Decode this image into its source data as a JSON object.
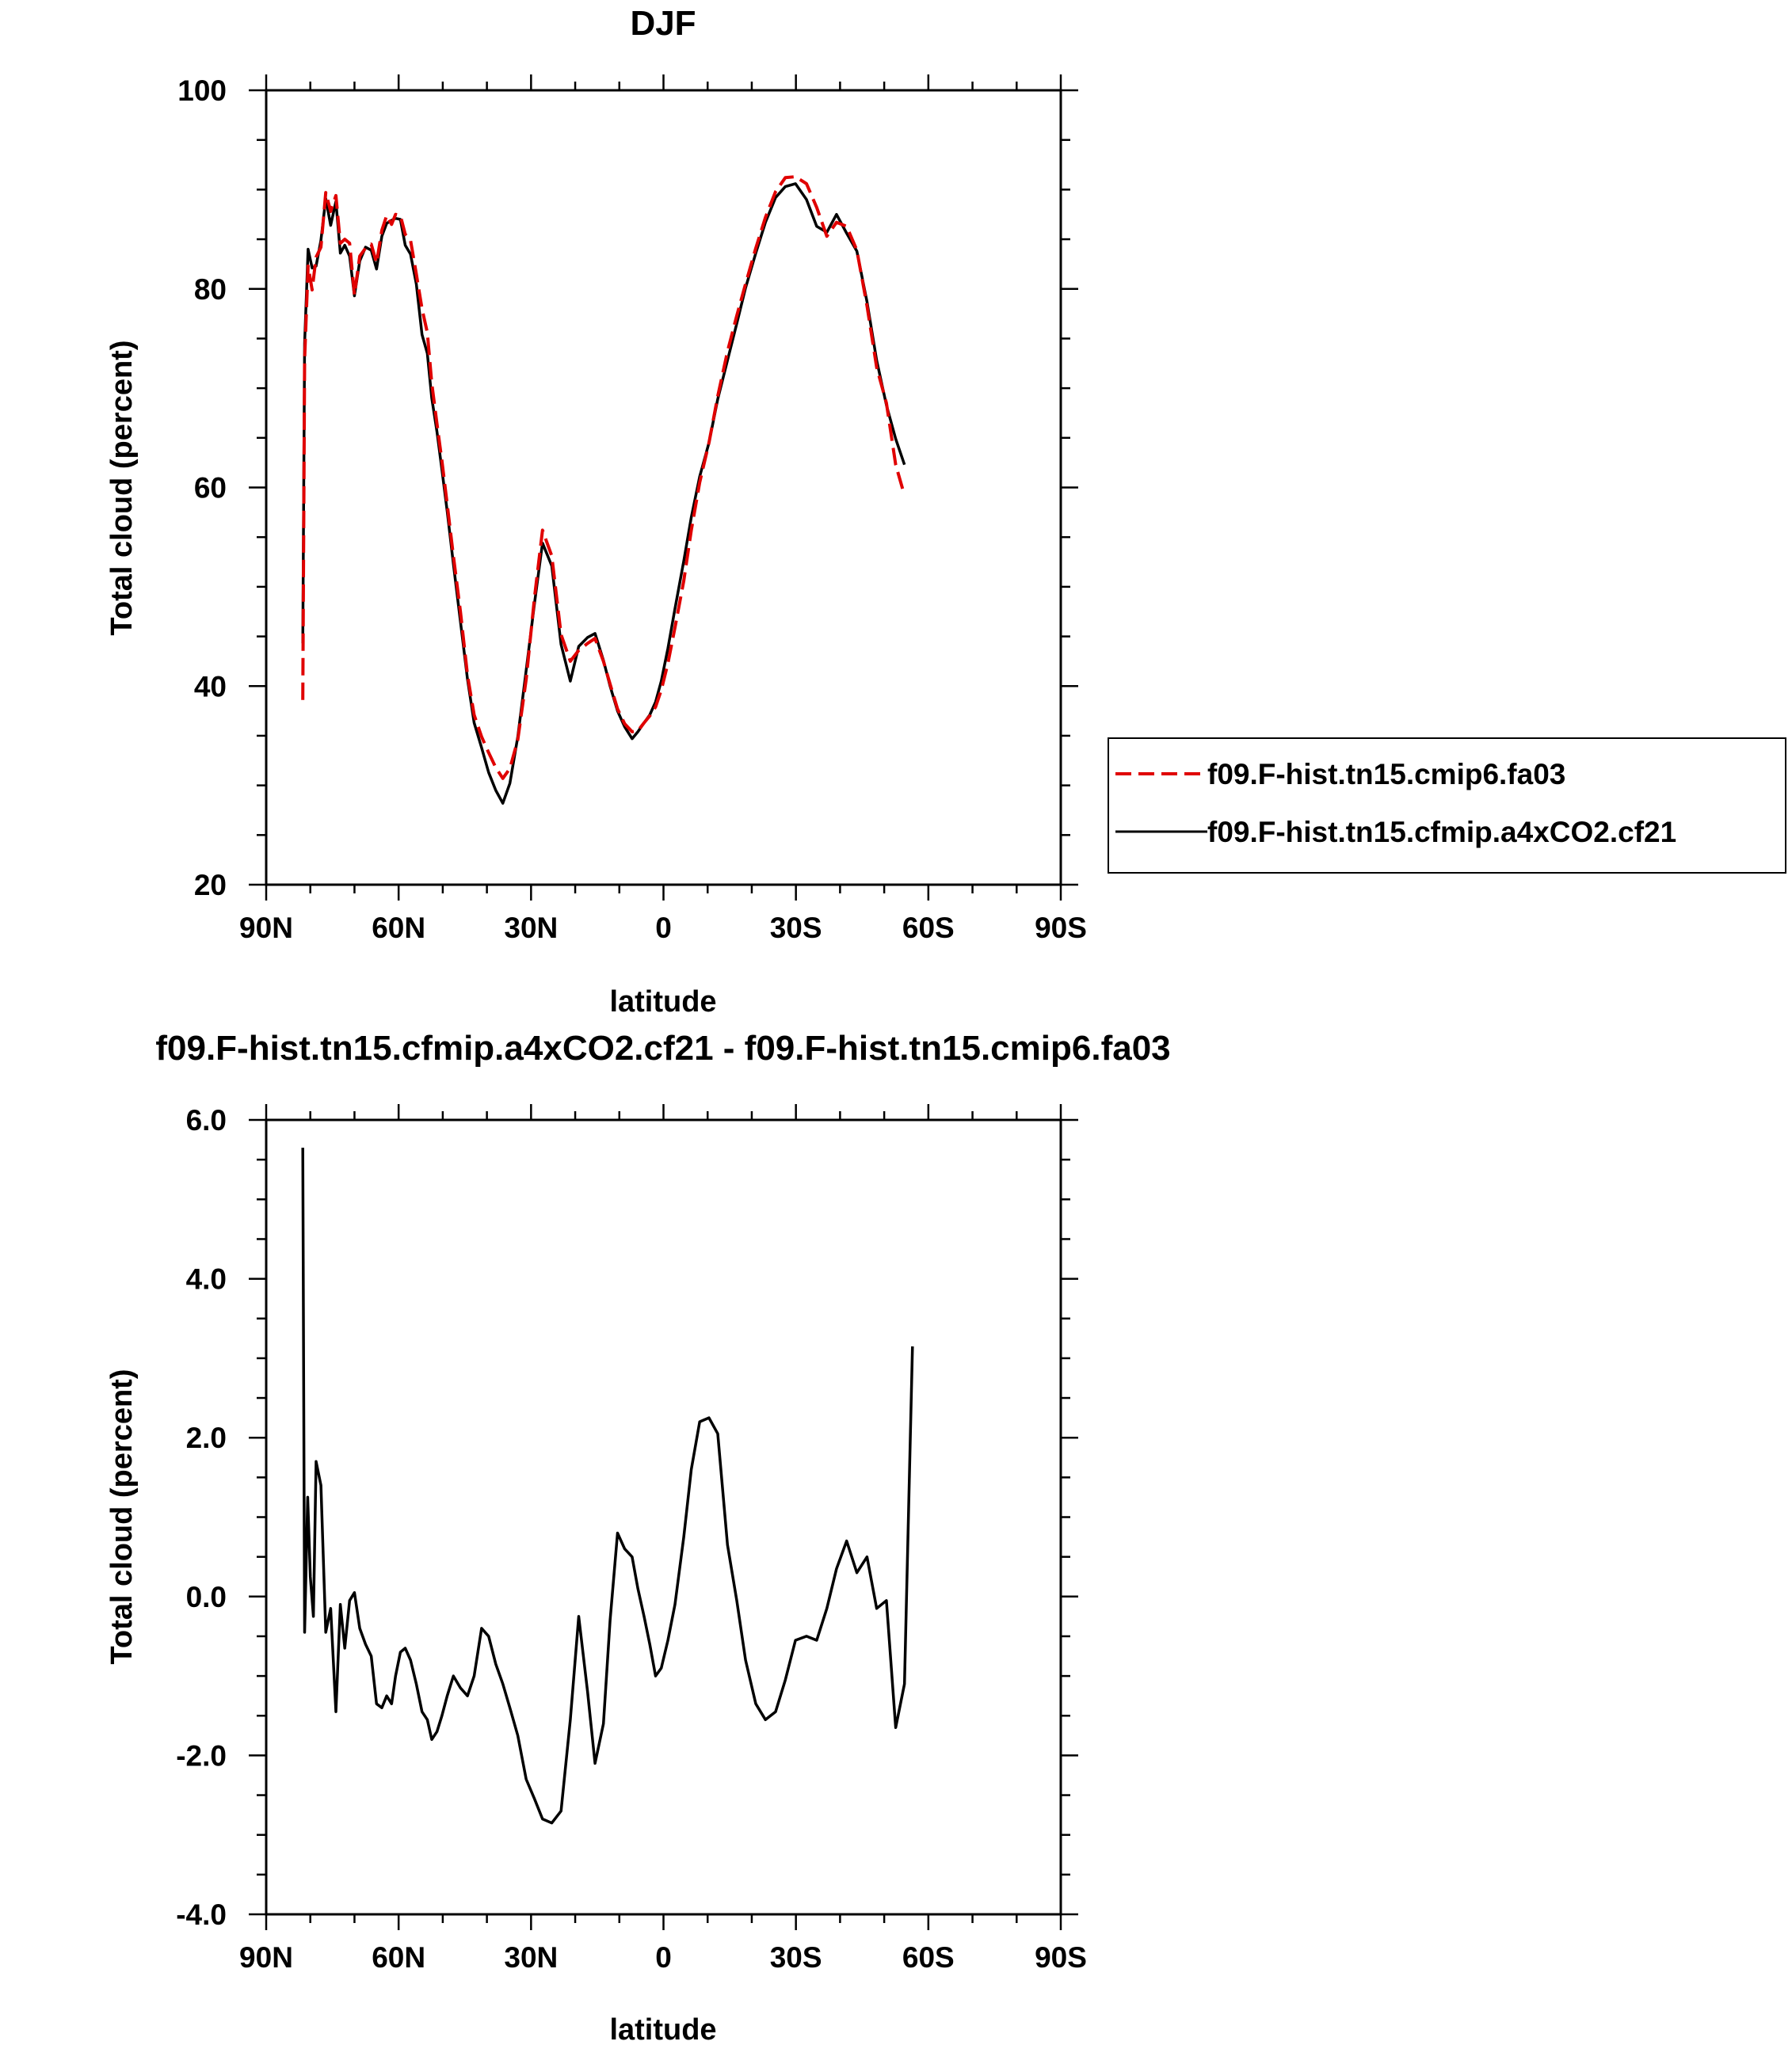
{
  "chart_data": [
    {
      "type": "line",
      "title": "DJF",
      "xlabel": "latitude",
      "ylabel": "Total cloud (percent)",
      "xlim": [
        90,
        -90
      ],
      "ylim": [
        20,
        100
      ],
      "x_ticks": [
        90,
        60,
        30,
        0,
        -30,
        -60,
        -90
      ],
      "x_tick_labels": [
        "90N",
        "60N",
        "30N",
        "0",
        "30S",
        "60S",
        "90S"
      ],
      "y_ticks": [
        20,
        40,
        60,
        80,
        100
      ],
      "y_tick_labels": [
        "20",
        "40",
        "60",
        "80",
        "100"
      ],
      "legend_position": "right-middle",
      "series": [
        {
          "name": "f09.F-hist.tn15.cmip6.fa03",
          "color": "#e00000",
          "style": "dashed",
          "x": [
            81.7,
            81.3,
            80.5,
            79.6,
            78.7,
            77.6,
            76.5,
            75.4,
            74.2,
            73.2,
            72.2,
            71.1,
            70.0,
            68.8,
            67.5,
            66.2,
            65.0,
            63.8,
            62.7,
            61.6,
            60.7,
            59.6,
            58.5,
            57.3,
            56.0,
            54.7,
            53.5,
            52.5,
            51.3,
            50.2,
            49.0,
            47.6,
            46.0,
            44.4,
            42.9,
            41.2,
            39.6,
            38.0,
            36.4,
            34.8,
            33.0,
            31.1,
            29.2,
            27.4,
            25.3,
            23.2,
            21.1,
            19.2,
            17.2,
            15.5,
            13.6,
            12.1,
            10.4,
            8.8,
            7.1,
            5.8,
            4.4,
            3.1,
            1.8,
            0.5,
            -1.0,
            -2.6,
            -4.6,
            -6.3,
            -8.2,
            -10.3,
            -12.3,
            -14.5,
            -16.6,
            -18.6,
            -20.9,
            -23.1,
            -25.4,
            -27.6,
            -29.9,
            -32.4,
            -34.7,
            -37.0,
            -39.2,
            -41.5,
            -43.8,
            -46.1,
            -48.3,
            -50.5,
            -52.6,
            -54.6,
            -56.4,
            -58.2,
            -60.0,
            -61.6,
            -63.0,
            -64.4,
            -65.6,
            -66.5,
            -67.5,
            -68.4,
            -69.5,
            -70.3,
            -71.1,
            -72.1,
            -73.1,
            -74.1,
            -75.1,
            -76.4,
            -77.7
          ],
          "y": [
            38.6,
            72.9,
            82.3,
            79.9,
            83.2,
            84.2,
            89.7,
            87.8,
            89.4,
            84.6,
            85.0,
            84.6,
            79.4,
            83.3,
            84.1,
            84.5,
            82.6,
            85.9,
            87.4,
            86.5,
            87.5,
            87.4,
            85.5,
            84.9,
            81.5,
            78.0,
            75.6,
            70.5,
            66.4,
            62.7,
            58.3,
            53.1,
            47.5,
            41.1,
            37.1,
            34.9,
            33.3,
            31.8,
            30.7,
            31.7,
            34.6,
            40.7,
            49.0,
            55.7,
            53.1,
            45.2,
            42.5,
            43.6,
            44.3,
            44.8,
            42.5,
            40.2,
            37.7,
            36.2,
            35.4,
            35.5,
            36.3,
            37.0,
            37.9,
            39.6,
            42.3,
            45.9,
            50.6,
            55.7,
            60.5,
            64.5,
            69.2,
            73.7,
            77.3,
            80.5,
            84.1,
            87.2,
            89.8,
            91.2,
            91.3,
            90.6,
            88.2,
            85.3,
            86.7,
            86.3,
            83.9,
            78.3,
            72.1,
            68.5,
            62.3,
            59.2,
            null,
            null,
            null,
            null,
            null,
            null,
            null,
            null,
            null,
            null,
            null,
            null,
            null,
            null,
            null,
            null,
            null,
            null,
            null
          ]
        },
        {
          "name": "f09.F-hist.tn15.cfmip.a4xCO2.cf21",
          "color": "#000000",
          "style": "solid",
          "x": [
            81.7,
            81.3,
            80.5,
            79.6,
            78.7,
            77.6,
            76.5,
            75.4,
            74.2,
            73.2,
            72.2,
            71.1,
            70.0,
            68.8,
            67.5,
            66.2,
            65.0,
            63.8,
            62.7,
            61.6,
            60.7,
            59.6,
            58.5,
            57.3,
            56.0,
            54.7,
            53.5,
            52.5,
            51.3,
            50.2,
            49.0,
            47.6,
            46.0,
            44.4,
            42.9,
            41.2,
            39.6,
            38.0,
            36.4,
            34.8,
            33.0,
            31.1,
            29.2,
            27.4,
            25.3,
            23.2,
            21.1,
            19.2,
            17.2,
            15.5,
            13.6,
            12.1,
            10.4,
            8.8,
            7.1,
            5.8,
            4.4,
            3.1,
            1.8,
            0.5,
            -1.0,
            -2.6,
            -4.6,
            -6.3,
            -8.2,
            -10.3,
            -12.3,
            -14.5,
            -16.6,
            -18.6,
            -20.9,
            -23.1,
            -25.4,
            -27.6,
            -29.9,
            -32.4,
            -34.7,
            -37.0,
            -39.2,
            -41.5,
            -43.8,
            -46.1,
            -48.3,
            -50.5,
            -52.6,
            -54.6,
            -56.4,
            -58.2,
            -60.0,
            -61.6,
            -63.0,
            -64.4,
            -65.6,
            -66.5,
            -67.5,
            -68.4,
            -69.5,
            -70.3,
            -71.1,
            -72.1,
            -73.1,
            -74.1,
            -75.1,
            -76.4,
            -77.7
          ],
          "y": [
            44.3,
            74.5,
            84.0,
            82.1,
            82.3,
            84.9,
            89.1,
            86.4,
            88.8,
            83.6,
            84.4,
            83.3,
            79.3,
            82.8,
            84.2,
            83.9,
            82.0,
            85.3,
            86.6,
            86.9,
            87.1,
            87.0,
            84.4,
            83.5,
            80.5,
            75.4,
            73.5,
            69.0,
            65.6,
            61.8,
            57.6,
            52.3,
            46.5,
            40.7,
            36.3,
            33.8,
            31.3,
            29.5,
            28.2,
            30.2,
            34.9,
            41.6,
            48.4,
            54.4,
            52.1,
            44.2,
            40.5,
            44.0,
            44.9,
            45.3,
            42.6,
            40.0,
            37.5,
            35.9,
            34.7,
            35.4,
            36.3,
            37.1,
            38.4,
            40.5,
            43.8,
            47.8,
            52.6,
            57.0,
            61.1,
            64.5,
            68.9,
            72.8,
            76.5,
            80.1,
            83.6,
            86.7,
            89.2,
            90.3,
            90.6,
            89.0,
            86.3,
            85.7,
            87.5,
            85.6,
            83.8,
            78.7,
            72.8,
            68.3,
            64.9,
            62.3,
            null,
            null,
            null,
            null,
            null,
            null,
            null,
            null,
            null,
            null,
            null,
            null,
            null,
            null,
            null,
            null,
            null,
            null,
            null
          ]
        }
      ]
    },
    {
      "type": "line",
      "title": "f09.F-hist.tn15.cfmip.a4xCO2.cf21 - f09.F-hist.tn15.cmip6.fa03",
      "xlabel": "latitude",
      "ylabel": "Total cloud (percent)",
      "xlim": [
        90,
        -90
      ],
      "ylim": [
        -4,
        6
      ],
      "x_ticks": [
        90,
        60,
        30,
        0,
        -30,
        -60,
        -90
      ],
      "x_tick_labels": [
        "90N",
        "60N",
        "30N",
        "0",
        "30S",
        "60S",
        "90S"
      ],
      "y_ticks": [
        -4,
        -2,
        0,
        2,
        4,
        6
      ],
      "y_tick_labels": [
        "-4.0",
        "-2.0",
        "0.0",
        "2.0",
        "4.0",
        "6.0"
      ],
      "series": [
        {
          "color": "#000000",
          "style": "solid",
          "x": [
            81.7,
            81.3,
            80.6,
            80.0,
            79.3,
            78.7,
            77.6,
            76.5,
            75.4,
            74.2,
            73.2,
            72.2,
            71.1,
            70.0,
            68.8,
            67.5,
            66.2,
            65.0,
            63.8,
            62.7,
            61.6,
            60.7,
            59.6,
            58.5,
            57.3,
            56.0,
            54.7,
            53.5,
            52.5,
            51.3,
            50.2,
            49.0,
            47.6,
            46.0,
            44.4,
            42.9,
            41.2,
            39.6,
            38.0,
            36.4,
            34.8,
            33.0,
            31.1,
            29.2,
            27.4,
            25.3,
            23.2,
            21.1,
            19.2,
            17.2,
            15.5,
            13.6,
            12.1,
            10.4,
            8.8,
            7.1,
            5.8,
            4.4,
            3.1,
            1.8,
            0.5,
            -1.0,
            -2.6,
            -4.6,
            -6.3,
            -8.2,
            -10.3,
            -12.3,
            -14.5,
            -16.6,
            -18.6,
            -20.9,
            -23.1,
            -25.4,
            -27.6,
            -29.9,
            -32.4,
            -34.7,
            -37.0,
            -39.2,
            -41.5,
            -43.8,
            -46.1,
            -48.3,
            -50.5,
            -52.6,
            -54.6,
            -56.4,
            -58.2,
            -60.0,
            -61.6,
            -63.0,
            -64.4,
            -65.6,
            -66.5,
            -67.5,
            -68.4,
            -69.5,
            -70.3,
            -71.1,
            -72.1,
            -73.1,
            -74.1,
            -75.1,
            -76.4,
            -77.7
          ],
          "y": [
            5.65,
            -0.45,
            1.25,
            0.25,
            -0.25,
            1.7,
            1.4,
            -0.45,
            -0.15,
            -1.45,
            -0.1,
            -0.65,
            -0.05,
            0.05,
            -0.4,
            -0.6,
            -0.75,
            -1.35,
            -1.4,
            -1.25,
            -1.35,
            -1.0,
            -0.7,
            -0.65,
            -0.8,
            -1.1,
            -1.45,
            -1.55,
            -1.8,
            -1.7,
            -1.5,
            -1.25,
            -1.0,
            -1.15,
            -1.25,
            -1.0,
            -0.4,
            -0.5,
            -0.85,
            -1.1,
            -1.4,
            -1.75,
            -2.3,
            -2.55,
            -2.8,
            -2.85,
            -2.7,
            -1.55,
            -0.25,
            -1.2,
            -2.1,
            -1.6,
            -0.3,
            0.8,
            0.6,
            0.5,
            0.1,
            -0.25,
            -0.6,
            -1.0,
            -0.9,
            -0.55,
            -0.1,
            0.75,
            1.6,
            2.2,
            2.25,
            2.05,
            0.65,
            -0.05,
            -0.8,
            -1.35,
            -1.55,
            -1.45,
            -1.05,
            -0.55,
            -0.5,
            -0.55,
            -0.15,
            0.35,
            0.7,
            0.3,
            0.5,
            -0.15,
            -0.05,
            -1.65,
            -1.1,
            3.15,
            null,
            null,
            null,
            null,
            null,
            null,
            null,
            null,
            null,
            null,
            null,
            null,
            null,
            null,
            null,
            null,
            null,
            null
          ]
        }
      ]
    }
  ]
}
